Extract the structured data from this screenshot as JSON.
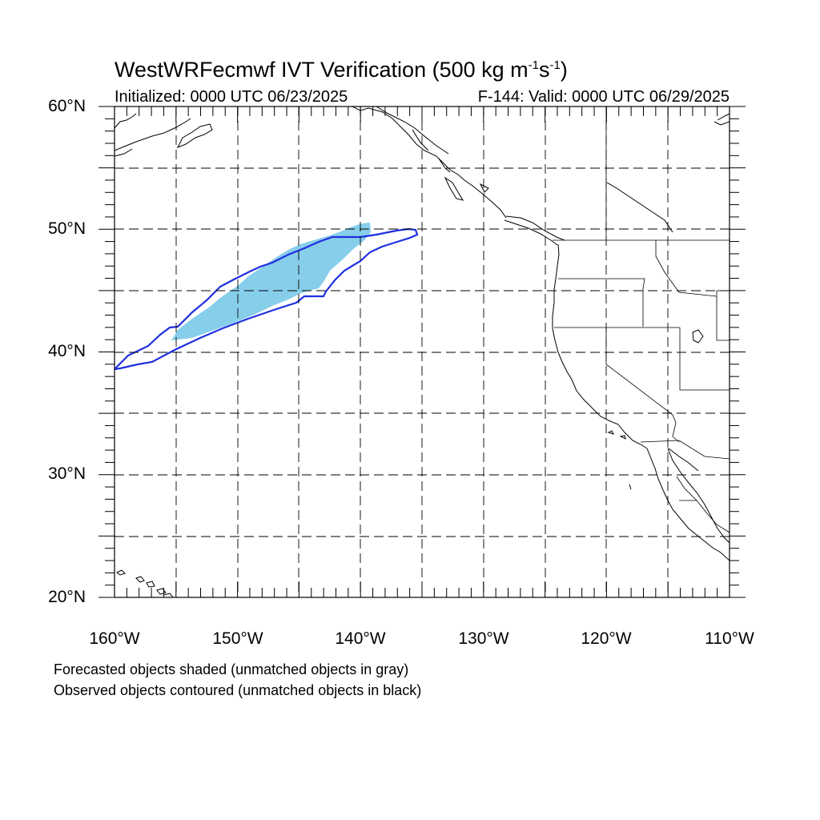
{
  "title": {
    "main": "WestWRFecmwf IVT Verification (500 kg m",
    "sup1": "-1",
    "mid": "s",
    "sup2": "-1",
    "end": ")"
  },
  "initialized": "Initialized: 0000 UTC 06/23/2025",
  "valid": "F-144: Valid: 0000 UTC 06/29/2025",
  "lat_labels": [
    "60°N",
    "50°N",
    "40°N",
    "30°N",
    "20°N"
  ],
  "lon_labels": [
    "160°W",
    "150°W",
    "140°W",
    "130°W",
    "120°W",
    "110°W"
  ],
  "notes": [
    "Forecasted objects shaded (unmatched objects in gray)",
    "Observed objects contoured (unmatched objects in black)"
  ],
  "map": {
    "lon_range": [
      -160,
      -110
    ],
    "lat_range": [
      20,
      60
    ],
    "grid_spacing_deg": 5,
    "forecast_color": "#87ceeb",
    "observed_color": "#1f2fe0",
    "coast_color": "#000000",
    "grid_color": "#000000"
  }
}
